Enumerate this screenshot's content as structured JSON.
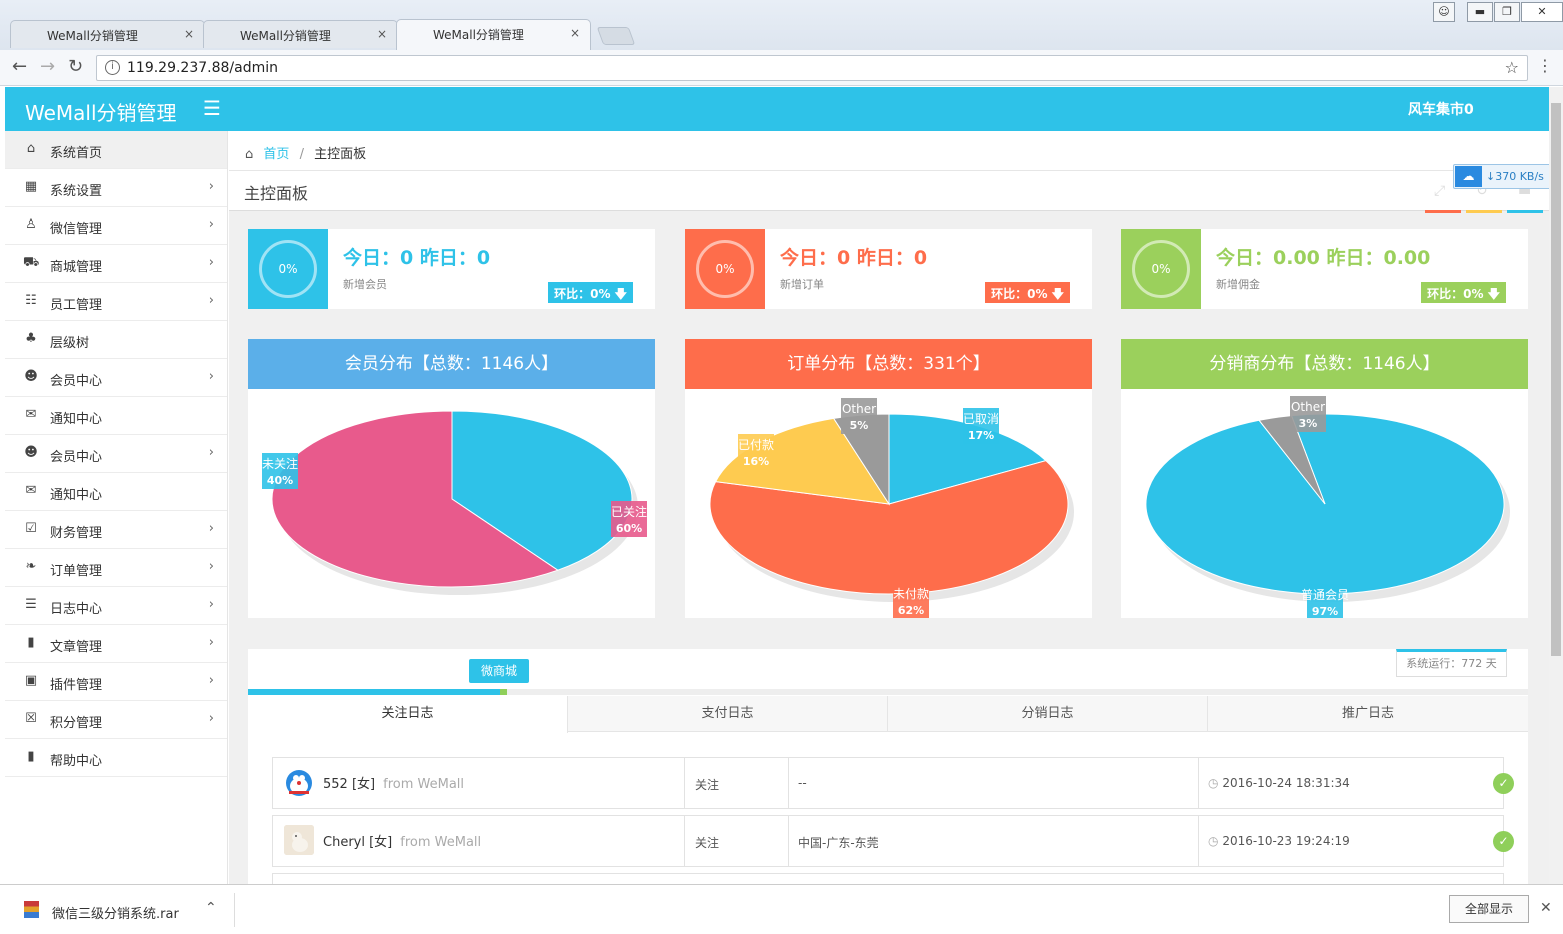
{
  "browser": {
    "tabs": [
      {
        "label": "WeMall分销管理",
        "close": "×"
      },
      {
        "label": "WeMall分销管理",
        "close": "×"
      },
      {
        "label": "WeMall分销管理",
        "close": "×"
      }
    ],
    "url": "119.29.237.88/admin"
  },
  "header": {
    "logo": "WeMall分销管理",
    "user": "风车集市0"
  },
  "sidebar": {
    "items": [
      {
        "label": "系统首页",
        "icon": "home-icon",
        "arrow": false
      },
      {
        "label": "系统设置",
        "icon": "grid-icon",
        "arrow": true
      },
      {
        "label": "微信管理",
        "icon": "penguin-icon",
        "arrow": true
      },
      {
        "label": "商城管理",
        "icon": "cart-icon",
        "arrow": true
      },
      {
        "label": "员工管理",
        "icon": "sitemap-icon",
        "arrow": true
      },
      {
        "label": "层级树",
        "icon": "tree-icon",
        "arrow": false
      },
      {
        "label": "会员中心",
        "icon": "user-icon",
        "arrow": true
      },
      {
        "label": "通知中心",
        "icon": "envelope-icon",
        "arrow": false
      },
      {
        "label": "会员中心",
        "icon": "user-icon",
        "arrow": true
      },
      {
        "label": "通知中心",
        "icon": "envelope-icon",
        "arrow": false
      },
      {
        "label": "财务管理",
        "icon": "check-square-icon",
        "arrow": true
      },
      {
        "label": "订单管理",
        "icon": "leaf-icon",
        "arrow": true
      },
      {
        "label": "日志中心",
        "icon": "list-icon",
        "arrow": true
      },
      {
        "label": "文章管理",
        "icon": "book-icon",
        "arrow": true
      },
      {
        "label": "插件管理",
        "icon": "inbox-icon",
        "arrow": true
      },
      {
        "label": "积分管理",
        "icon": "gift-icon",
        "arrow": true
      },
      {
        "label": "帮助中心",
        "icon": "book-icon",
        "arrow": false
      }
    ]
  },
  "breadcrumb": {
    "home": "首页",
    "sep": "/",
    "current": "主控面板"
  },
  "page_title": "主控面板",
  "speed": "370 KB/s",
  "stats": [
    {
      "percent": "0%",
      "headline": "今日：0  昨日：0",
      "sub": "新增会员",
      "badge": "环比：0%",
      "color": "#2ec2e8"
    },
    {
      "percent": "0%",
      "headline": "今日：0  昨日：0",
      "sub": "新增订单",
      "badge": "环比：0%",
      "color": "#fe6d4b"
    },
    {
      "percent": "0%",
      "headline": "今日：0.00  昨日：0.00",
      "sub": "新增佣金",
      "badge": "环比：0%",
      "color": "#9bd05c"
    }
  ],
  "charts": {
    "header_colors": [
      "#5bafe9",
      "#fe6d4b",
      "#9bd05c"
    ]
  },
  "chart_data": [
    {
      "type": "pie",
      "title": "会员分布【总数：1146人】",
      "slices": [
        {
          "label": "未关注",
          "value": 40,
          "display": "40%",
          "color": "#2ec2e8"
        },
        {
          "label": "已关注",
          "value": 60,
          "display": "60%",
          "color": "#e85a8c"
        }
      ]
    },
    {
      "type": "pie",
      "title": "订单分布【总数：331个】",
      "slices": [
        {
          "label": "已取消",
          "value": 17,
          "display": "17%",
          "color": "#2ec2e8"
        },
        {
          "label": "未付款",
          "value": 62,
          "display": "62%",
          "color": "#fe6d4b"
        },
        {
          "label": "已付款",
          "value": 16,
          "display": "16%",
          "color": "#fecb50"
        },
        {
          "label": "Other",
          "value": 5,
          "display": "5%",
          "color": "#9a9a9a"
        }
      ]
    },
    {
      "type": "pie",
      "title": "分销商分布【总数：1146人】",
      "slices": [
        {
          "label": "普通会员",
          "value": 97,
          "display": "97%",
          "color": "#2ec2e8"
        },
        {
          "label": "Other",
          "value": 3,
          "display": "3%",
          "color": "#9a9a9a"
        }
      ]
    }
  ],
  "logs": {
    "uptime": "系统运行：772 天",
    "shop_tag": "微商城",
    "progress": 0.2,
    "tabs": [
      "关注日志",
      "支付日志",
      "分销日志",
      "推广日志"
    ],
    "rows": [
      {
        "name": "552",
        "gender": "[女]",
        "from": "from  WeMall",
        "action": "关注",
        "location": "--",
        "time": "2016-10-24 18:31:34"
      },
      {
        "name": "Cheryl",
        "gender": "[女]",
        "from": "from  WeMall",
        "action": "关注",
        "location": "中国-广东-东莞",
        "time": "2016-10-23 19:24:19"
      }
    ]
  },
  "download": {
    "file": "微信三级分销系统.rar",
    "show_all": "全部显示"
  }
}
